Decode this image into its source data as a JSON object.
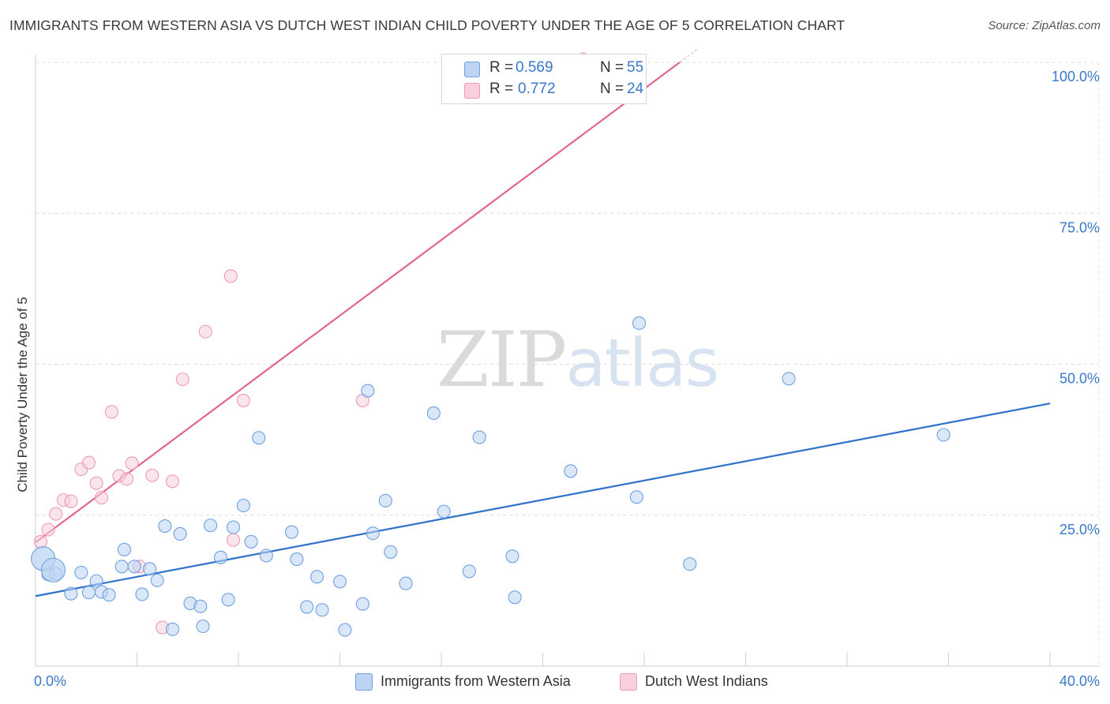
{
  "title": "IMMIGRANTS FROM WESTERN ASIA VS DUTCH WEST INDIAN CHILD POVERTY UNDER THE AGE OF 5 CORRELATION CHART",
  "source": "Source: ZipAtlas.com",
  "watermark": {
    "zip": "ZIP",
    "atlas": "atlas"
  },
  "legend": {
    "r_label": "R =",
    "n_label": "N =",
    "series": [
      {
        "r": "0.569",
        "n": "55"
      },
      {
        "r": "0.772",
        "n": "24"
      }
    ]
  },
  "chart_data": {
    "type": "scatter",
    "title": "IMMIGRANTS FROM WESTERN ASIA VS DUTCH WEST INDIAN CHILD POVERTY UNDER THE AGE OF 5 CORRELATION CHART",
    "xlabel": "",
    "ylabel": "Child Poverty Under the Age of 5",
    "xlim": [
      0,
      40
    ],
    "ylim": [
      0,
      100
    ],
    "x_tick_labels": [
      "0.0%",
      "40.0%"
    ],
    "y_ticks": [
      {
        "value": 25,
        "label": "25.0%"
      },
      {
        "value": 50,
        "label": "50.0%"
      },
      {
        "value": 75,
        "label": "75.0%"
      },
      {
        "value": 100,
        "label": "100.0%"
      }
    ],
    "grid": true,
    "legend_position": "bottom",
    "series": [
      {
        "name": "Immigrants from Western Asia",
        "color": "#6fa0e0",
        "fill": "#bcd4f2",
        "line_color": "#2f72cc",
        "trend": {
          "x": [
            0,
            40
          ],
          "y": [
            11.6,
            43.5
          ]
        },
        "points": [
          {
            "x": 0.3,
            "y": 17.8,
            "big": true
          },
          {
            "x": 0.5,
            "y": 15.2
          },
          {
            "x": 0.8,
            "y": 15.3
          },
          {
            "x": 1.4,
            "y": 12.0
          },
          {
            "x": 1.8,
            "y": 15.5
          },
          {
            "x": 2.1,
            "y": 12.2
          },
          {
            "x": 2.4,
            "y": 14.1
          },
          {
            "x": 2.6,
            "y": 12.3
          },
          {
            "x": 2.9,
            "y": 11.8
          },
          {
            "x": 3.4,
            "y": 16.5
          },
          {
            "x": 3.5,
            "y": 19.3
          },
          {
            "x": 3.9,
            "y": 16.5
          },
          {
            "x": 4.2,
            "y": 11.9
          },
          {
            "x": 4.5,
            "y": 16.1
          },
          {
            "x": 4.8,
            "y": 14.2
          },
          {
            "x": 5.1,
            "y": 23.2
          },
          {
            "x": 5.4,
            "y": 6.1
          },
          {
            "x": 5.7,
            "y": 21.9
          },
          {
            "x": 6.1,
            "y": 10.4
          },
          {
            "x": 6.5,
            "y": 9.9
          },
          {
            "x": 6.6,
            "y": 6.6
          },
          {
            "x": 6.9,
            "y": 23.3
          },
          {
            "x": 7.3,
            "y": 18.0
          },
          {
            "x": 7.6,
            "y": 11.0
          },
          {
            "x": 7.8,
            "y": 23.0
          },
          {
            "x": 8.2,
            "y": 26.6
          },
          {
            "x": 8.5,
            "y": 20.6
          },
          {
            "x": 8.8,
            "y": 37.8
          },
          {
            "x": 9.1,
            "y": 18.3
          },
          {
            "x": 10.1,
            "y": 22.2
          },
          {
            "x": 10.3,
            "y": 17.7
          },
          {
            "x": 10.7,
            "y": 9.8
          },
          {
            "x": 11.1,
            "y": 14.8
          },
          {
            "x": 11.3,
            "y": 9.3
          },
          {
            "x": 12.0,
            "y": 14.0
          },
          {
            "x": 12.2,
            "y": 6.0
          },
          {
            "x": 12.9,
            "y": 10.3
          },
          {
            "x": 13.1,
            "y": 45.6
          },
          {
            "x": 13.3,
            "y": 22.0
          },
          {
            "x": 13.8,
            "y": 27.4
          },
          {
            "x": 14.0,
            "y": 18.9
          },
          {
            "x": 14.6,
            "y": 13.7
          },
          {
            "x": 15.7,
            "y": 41.9
          },
          {
            "x": 16.1,
            "y": 25.6
          },
          {
            "x": 17.1,
            "y": 15.7
          },
          {
            "x": 17.5,
            "y": 37.9
          },
          {
            "x": 18.8,
            "y": 18.2
          },
          {
            "x": 18.9,
            "y": 11.4
          },
          {
            "x": 21.1,
            "y": 32.3
          },
          {
            "x": 23.8,
            "y": 56.8
          },
          {
            "x": 23.7,
            "y": 28.0
          },
          {
            "x": 25.8,
            "y": 16.9
          },
          {
            "x": 29.7,
            "y": 47.6
          },
          {
            "x": 35.8,
            "y": 38.3
          },
          {
            "x": 0.7,
            "y": 15.9,
            "big": true
          }
        ]
      },
      {
        "name": "Dutch West Indians",
        "color": "#ee9bb5",
        "fill": "#f8cfdc",
        "line_color": "#e06690",
        "trend": {
          "x": [
            0,
            25.4
          ],
          "y": [
            20.5,
            100
          ]
        },
        "points": [
          {
            "x": 0.2,
            "y": 20.6
          },
          {
            "x": 0.5,
            "y": 22.6
          },
          {
            "x": 0.8,
            "y": 25.2
          },
          {
            "x": 1.1,
            "y": 27.5
          },
          {
            "x": 1.4,
            "y": 27.3
          },
          {
            "x": 1.8,
            "y": 32.6
          },
          {
            "x": 2.1,
            "y": 33.7
          },
          {
            "x": 2.4,
            "y": 30.3
          },
          {
            "x": 2.6,
            "y": 27.9
          },
          {
            "x": 3.0,
            "y": 42.1
          },
          {
            "x": 3.3,
            "y": 31.5
          },
          {
            "x": 3.6,
            "y": 31.0
          },
          {
            "x": 3.8,
            "y": 33.6
          },
          {
            "x": 4.1,
            "y": 16.5
          },
          {
            "x": 4.6,
            "y": 31.6
          },
          {
            "x": 5.0,
            "y": 6.4
          },
          {
            "x": 5.4,
            "y": 30.6
          },
          {
            "x": 5.8,
            "y": 47.5
          },
          {
            "x": 6.7,
            "y": 55.4
          },
          {
            "x": 7.7,
            "y": 64.6
          },
          {
            "x": 7.8,
            "y": 20.9
          },
          {
            "x": 8.2,
            "y": 44.0
          },
          {
            "x": 12.9,
            "y": 44.0
          },
          {
            "x": 21.6,
            "y": 100.5
          }
        ]
      }
    ]
  }
}
